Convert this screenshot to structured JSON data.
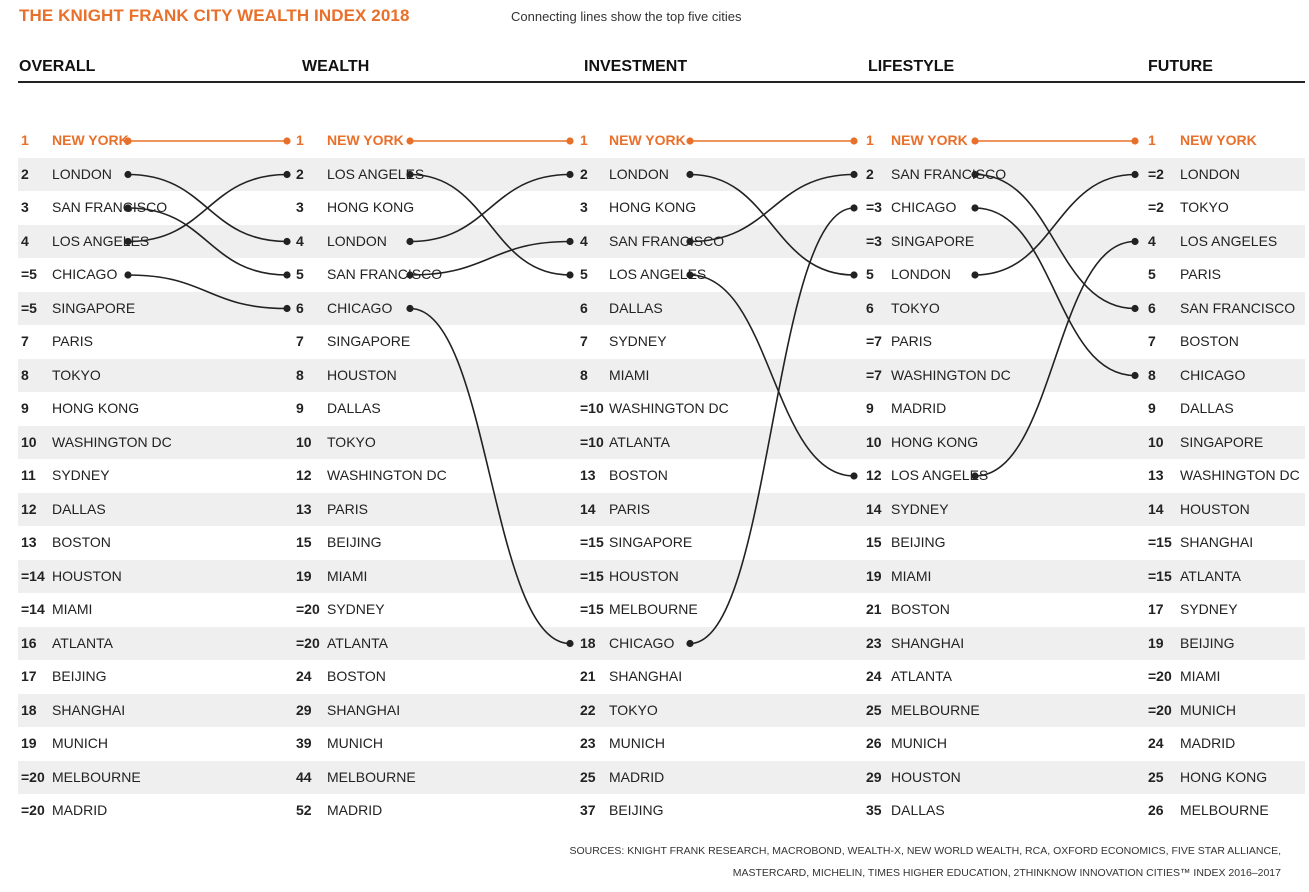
{
  "title": "THE KNIGHT FRANK CITY WEALTH INDEX 2018",
  "subtitle": "Connecting lines show the top five cities",
  "colors": {
    "accent": "#e8702a",
    "line": "#222222",
    "band": "#efefef"
  },
  "columns": [
    {
      "header": "OVERALL",
      "rows": [
        {
          "rank": "1",
          "city": "NEW YORK"
        },
        {
          "rank": "2",
          "city": "LONDON"
        },
        {
          "rank": "3",
          "city": "SAN FRANCISCO"
        },
        {
          "rank": "4",
          "city": "LOS ANGELES"
        },
        {
          "rank": "=5",
          "city": "CHICAGO"
        },
        {
          "rank": "=5",
          "city": "SINGAPORE"
        },
        {
          "rank": "7",
          "city": "PARIS"
        },
        {
          "rank": "8",
          "city": "TOKYO"
        },
        {
          "rank": "9",
          "city": "HONG KONG"
        },
        {
          "rank": "10",
          "city": "WASHINGTON DC"
        },
        {
          "rank": "11",
          "city": "SYDNEY"
        },
        {
          "rank": "12",
          "city": "DALLAS"
        },
        {
          "rank": "13",
          "city": "BOSTON"
        },
        {
          "rank": "=14",
          "city": "HOUSTON"
        },
        {
          "rank": "=14",
          "city": "MIAMI"
        },
        {
          "rank": "16",
          "city": "ATLANTA"
        },
        {
          "rank": "17",
          "city": "BEIJING"
        },
        {
          "rank": "18",
          "city": "SHANGHAI"
        },
        {
          "rank": "19",
          "city": "MUNICH"
        },
        {
          "rank": "=20",
          "city": "MELBOURNE"
        },
        {
          "rank": "=20",
          "city": "MADRID"
        }
      ]
    },
    {
      "header": "WEALTH",
      "rows": [
        {
          "rank": "1",
          "city": "NEW YORK"
        },
        {
          "rank": "2",
          "city": "LOS ANGELES"
        },
        {
          "rank": "3",
          "city": "HONG KONG"
        },
        {
          "rank": "4",
          "city": "LONDON"
        },
        {
          "rank": "5",
          "city": "SAN FRANCISCO"
        },
        {
          "rank": "6",
          "city": "CHICAGO"
        },
        {
          "rank": "7",
          "city": "SINGAPORE"
        },
        {
          "rank": "8",
          "city": "HOUSTON"
        },
        {
          "rank": "9",
          "city": "DALLAS"
        },
        {
          "rank": "10",
          "city": "TOKYO"
        },
        {
          "rank": "12",
          "city": "WASHINGTON DC"
        },
        {
          "rank": "13",
          "city": "PARIS"
        },
        {
          "rank": "15",
          "city": "BEIJING"
        },
        {
          "rank": "19",
          "city": "MIAMI"
        },
        {
          "rank": "=20",
          "city": "SYDNEY"
        },
        {
          "rank": "=20",
          "city": "ATLANTA"
        },
        {
          "rank": "24",
          "city": "BOSTON"
        },
        {
          "rank": "29",
          "city": "SHANGHAI"
        },
        {
          "rank": "39",
          "city": "MUNICH"
        },
        {
          "rank": "44",
          "city": "MELBOURNE"
        },
        {
          "rank": "52",
          "city": "MADRID"
        }
      ]
    },
    {
      "header": "INVESTMENT",
      "rows": [
        {
          "rank": "1",
          "city": "NEW YORK"
        },
        {
          "rank": "2",
          "city": "LONDON"
        },
        {
          "rank": "3",
          "city": "HONG KONG"
        },
        {
          "rank": "4",
          "city": "SAN FRANCISCO"
        },
        {
          "rank": "5",
          "city": "LOS ANGELES"
        },
        {
          "rank": "6",
          "city": "DALLAS"
        },
        {
          "rank": "7",
          "city": "SYDNEY"
        },
        {
          "rank": "8",
          "city": "MIAMI"
        },
        {
          "rank": "=10",
          "city": "WASHINGTON DC"
        },
        {
          "rank": "=10",
          "city": "ATLANTA"
        },
        {
          "rank": "13",
          "city": "BOSTON"
        },
        {
          "rank": "14",
          "city": "PARIS"
        },
        {
          "rank": "=15",
          "city": "SINGAPORE"
        },
        {
          "rank": "=15",
          "city": "HOUSTON"
        },
        {
          "rank": "=15",
          "city": "MELBOURNE"
        },
        {
          "rank": "18",
          "city": "CHICAGO"
        },
        {
          "rank": "21",
          "city": "SHANGHAI"
        },
        {
          "rank": "22",
          "city": "TOKYO"
        },
        {
          "rank": "23",
          "city": "MUNICH"
        },
        {
          "rank": "25",
          "city": "MADRID"
        },
        {
          "rank": "37",
          "city": "BEIJING"
        }
      ]
    },
    {
      "header": "LIFESTYLE",
      "rows": [
        {
          "rank": "1",
          "city": "NEW YORK"
        },
        {
          "rank": "2",
          "city": "SAN FRANCISCO"
        },
        {
          "rank": "=3",
          "city": "CHICAGO"
        },
        {
          "rank": "=3",
          "city": "SINGAPORE"
        },
        {
          "rank": "5",
          "city": "LONDON"
        },
        {
          "rank": "6",
          "city": "TOKYO"
        },
        {
          "rank": "=7",
          "city": "PARIS"
        },
        {
          "rank": "=7",
          "city": "WASHINGTON DC"
        },
        {
          "rank": "9",
          "city": "MADRID"
        },
        {
          "rank": "10",
          "city": "HONG KONG"
        },
        {
          "rank": "12",
          "city": "LOS ANGELES"
        },
        {
          "rank": "14",
          "city": "SYDNEY"
        },
        {
          "rank": "15",
          "city": "BEIJING"
        },
        {
          "rank": "19",
          "city": "MIAMI"
        },
        {
          "rank": "21",
          "city": "BOSTON"
        },
        {
          "rank": "23",
          "city": "SHANGHAI"
        },
        {
          "rank": "24",
          "city": "ATLANTA"
        },
        {
          "rank": "25",
          "city": "MELBOURNE"
        },
        {
          "rank": "26",
          "city": "MUNICH"
        },
        {
          "rank": "29",
          "city": "HOUSTON"
        },
        {
          "rank": "35",
          "city": "DALLAS"
        }
      ]
    },
    {
      "header": "FUTURE",
      "rows": [
        {
          "rank": "1",
          "city": "NEW YORK"
        },
        {
          "rank": "=2",
          "city": "LONDON"
        },
        {
          "rank": "=2",
          "city": "TOKYO"
        },
        {
          "rank": "4",
          "city": "LOS ANGELES"
        },
        {
          "rank": "5",
          "city": "PARIS"
        },
        {
          "rank": "6",
          "city": "SAN FRANCISCO"
        },
        {
          "rank": "7",
          "city": "BOSTON"
        },
        {
          "rank": "8",
          "city": "CHICAGO"
        },
        {
          "rank": "9",
          "city": "DALLAS"
        },
        {
          "rank": "10",
          "city": "SINGAPORE"
        },
        {
          "rank": "13",
          "city": "WASHINGTON DC"
        },
        {
          "rank": "14",
          "city": "HOUSTON"
        },
        {
          "rank": "=15",
          "city": "SHANGHAI"
        },
        {
          "rank": "=15",
          "city": "ATLANTA"
        },
        {
          "rank": "17",
          "city": "SYDNEY"
        },
        {
          "rank": "19",
          "city": "BEIJING"
        },
        {
          "rank": "=20",
          "city": "MIAMI"
        },
        {
          "rank": "=20",
          "city": "MUNICH"
        },
        {
          "rank": "24",
          "city": "MADRID"
        },
        {
          "rank": "25",
          "city": "HONG KONG"
        },
        {
          "rank": "26",
          "city": "MELBOURNE"
        }
      ]
    }
  ],
  "top_cities": [
    "NEW YORK",
    "LONDON",
    "SAN FRANCISCO",
    "LOS ANGELES",
    "CHICAGO"
  ],
  "sources": [
    "SOURCES: KNIGHT FRANK RESEARCH, MACROBOND, WEALTH-X, NEW WORLD WEALTH, RCA, OXFORD ECONOMICS, FIVE STAR ALLIANCE,",
    "MASTERCARD, MICHELIN, TIMES HIGHER EDUCATION, 2THINKNOW INNOVATION CITIES™ INDEX 2016–2017"
  ]
}
